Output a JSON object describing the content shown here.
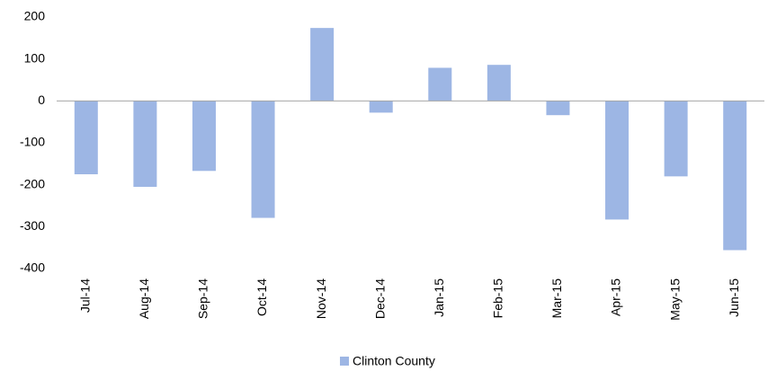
{
  "chart_data": {
    "type": "bar",
    "categories": [
      "Jul-14",
      "Aug-14",
      "Sep-14",
      "Oct-14",
      "Nov-14",
      "Dec-14",
      "Jan-15",
      "Feb-15",
      "Mar-15",
      "Apr-15",
      "May-15",
      "Jun-15"
    ],
    "series": [
      {
        "name": "Clinton County",
        "color": "#9db6e4",
        "values": [
          -175,
          -205,
          -167,
          -279,
          174,
          -28,
          79,
          86,
          -34,
          -283,
          -180,
          -356
        ]
      }
    ],
    "ylim": [
      -400,
      200
    ],
    "yticks": [
      -400,
      -300,
      -200,
      -100,
      0,
      100,
      200
    ],
    "grid": false,
    "legend": "bottom"
  }
}
